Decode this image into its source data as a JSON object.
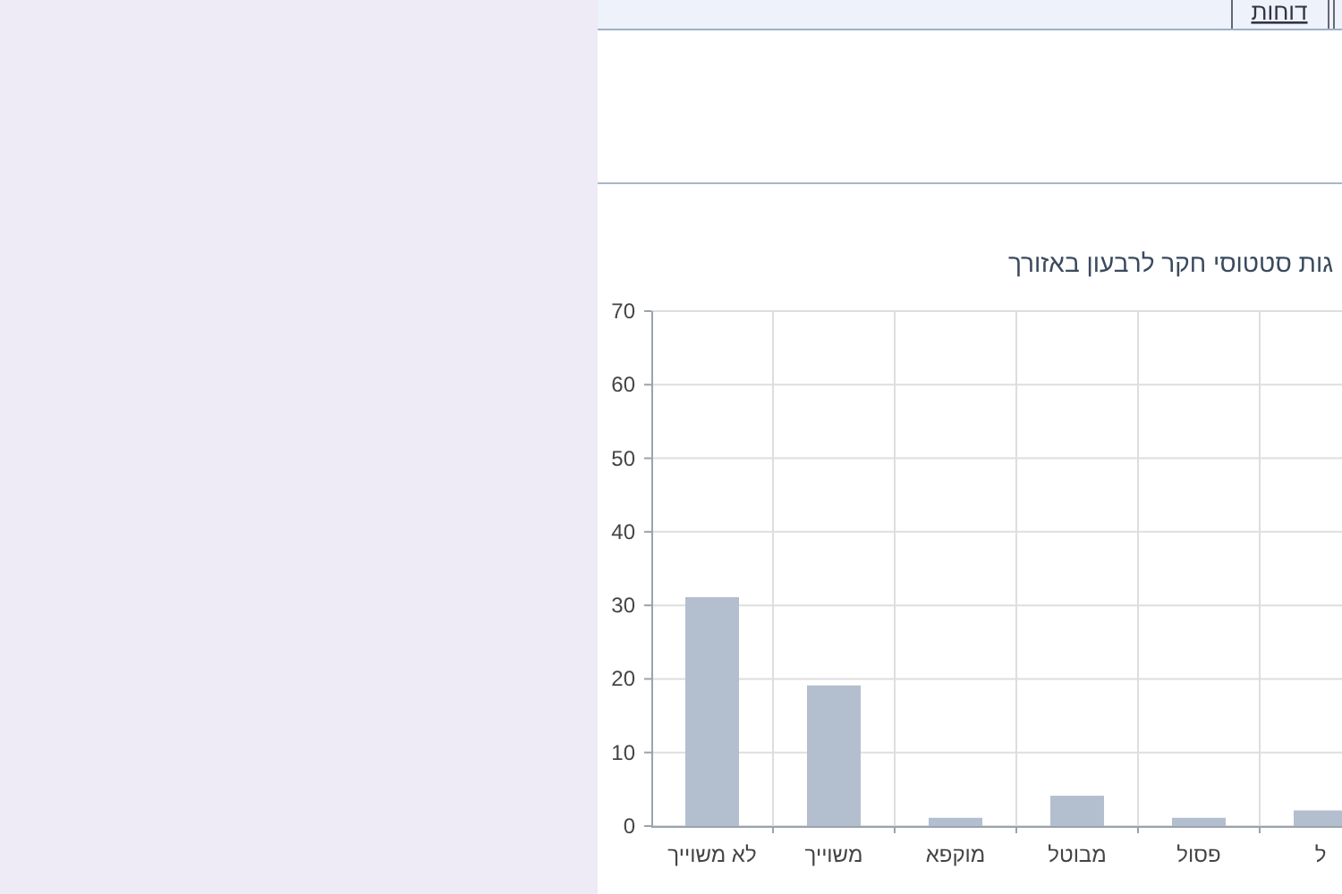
{
  "chart_data": {
    "type": "bar",
    "title": "גות סטטוסי חקר לרבעון באזורך",
    "annotations": [
      "דוחות"
    ],
    "categories": [
      "לא משוייך",
      "משוייך",
      "מוקפא",
      "מבוטל",
      "פסול",
      "ל"
    ],
    "values": [
      31,
      19,
      1,
      4,
      1,
      2
    ],
    "color": "#b3bfce",
    "ylim": [
      0,
      70
    ],
    "yticks": [
      0,
      10,
      20,
      30,
      40,
      50,
      60,
      70
    ],
    "grid": true
  }
}
